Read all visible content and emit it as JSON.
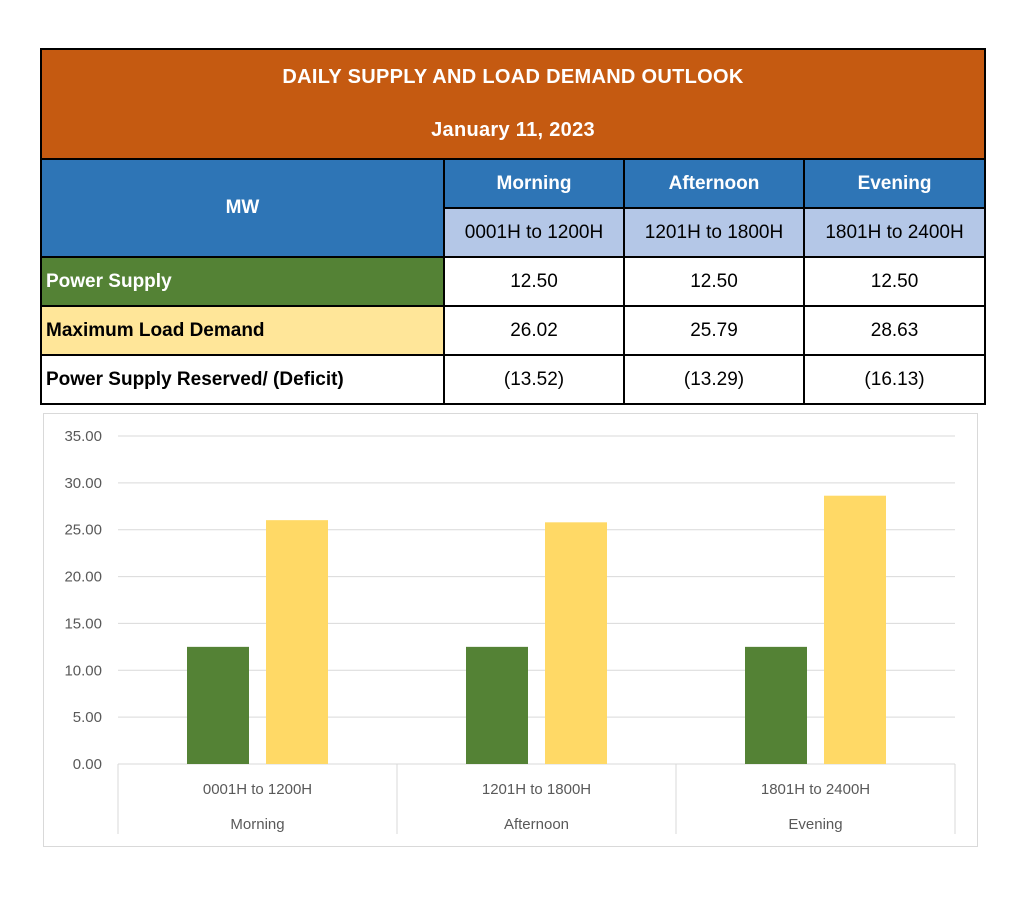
{
  "title": "DAILY SUPPLY AND LOAD DEMAND OUTLOOK",
  "date": "January 11, 2023",
  "unit_header": "MW",
  "periods": [
    {
      "name": "Morning",
      "range": "0001H to 1200H"
    },
    {
      "name": "Afternoon",
      "range": "1201H to 1800H"
    },
    {
      "name": "Evening",
      "range": "1801H to 2400H"
    }
  ],
  "rows": [
    {
      "label": "Power Supply",
      "values": [
        "12.50",
        "12.50",
        "12.50"
      ]
    },
    {
      "label": "Maximum Load Demand",
      "values": [
        "26.02",
        "25.79",
        "28.63"
      ]
    },
    {
      "label": "Power Supply Reserved/ (Deficit)",
      "values": [
        "(13.52)",
        "(13.29)",
        "(16.13)"
      ]
    }
  ],
  "colors": {
    "header": "#c55a11",
    "mw_header": "#2e75b6",
    "range_header": "#b4c7e7",
    "supply": "#548235",
    "demand_table": "#ffe699",
    "demand_bar": "#ffd966"
  },
  "chart_data": {
    "type": "bar",
    "categories": [
      {
        "range": "0001H to 1200H",
        "period": "Morning"
      },
      {
        "range": "1201H to 1800H",
        "period": "Afternoon"
      },
      {
        "range": "1801H to 2400H",
        "period": "Evening"
      }
    ],
    "series": [
      {
        "values": [
          12.5,
          12.5,
          12.5
        ],
        "color": "#548235"
      },
      {
        "values": [
          26.02,
          25.79,
          28.63
        ],
        "color": "#ffd966"
      }
    ],
    "yticks": [
      "0.00",
      "5.00",
      "10.00",
      "15.00",
      "20.00",
      "25.00",
      "30.00",
      "35.00"
    ],
    "ylim": [
      0,
      35
    ],
    "grid": true,
    "legend": "none"
  }
}
